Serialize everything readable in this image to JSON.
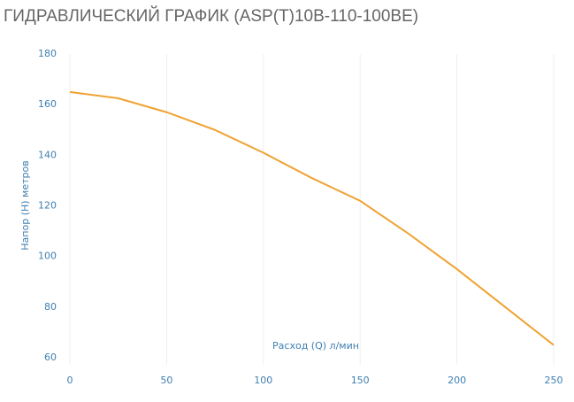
{
  "chart_data": {
    "type": "line",
    "title": "ГИДРАВЛИЧЕСКИЙ ГРАФИК (ASP(T)10B-110-100BE)",
    "x_label": "Расход (Q) л/мин",
    "y_label": "Напор (H) метров",
    "x": [
      0,
      25,
      50,
      75,
      100,
      125,
      150,
      175,
      200,
      225,
      250
    ],
    "series": [
      {
        "name": "ASP(T)10B-110-100BE",
        "color": "#f0a232",
        "values": [
          165,
          162.5,
          157,
          150,
          141,
          131,
          122,
          109,
          95,
          80,
          65
        ]
      }
    ],
    "xlim": [
      0,
      250
    ],
    "xticks": [
      0,
      50,
      100,
      150,
      200,
      250
    ],
    "ylim": [
      60,
      180
    ],
    "yticks": [
      60,
      80,
      100,
      120,
      140,
      160,
      180
    ],
    "grid": true
  }
}
